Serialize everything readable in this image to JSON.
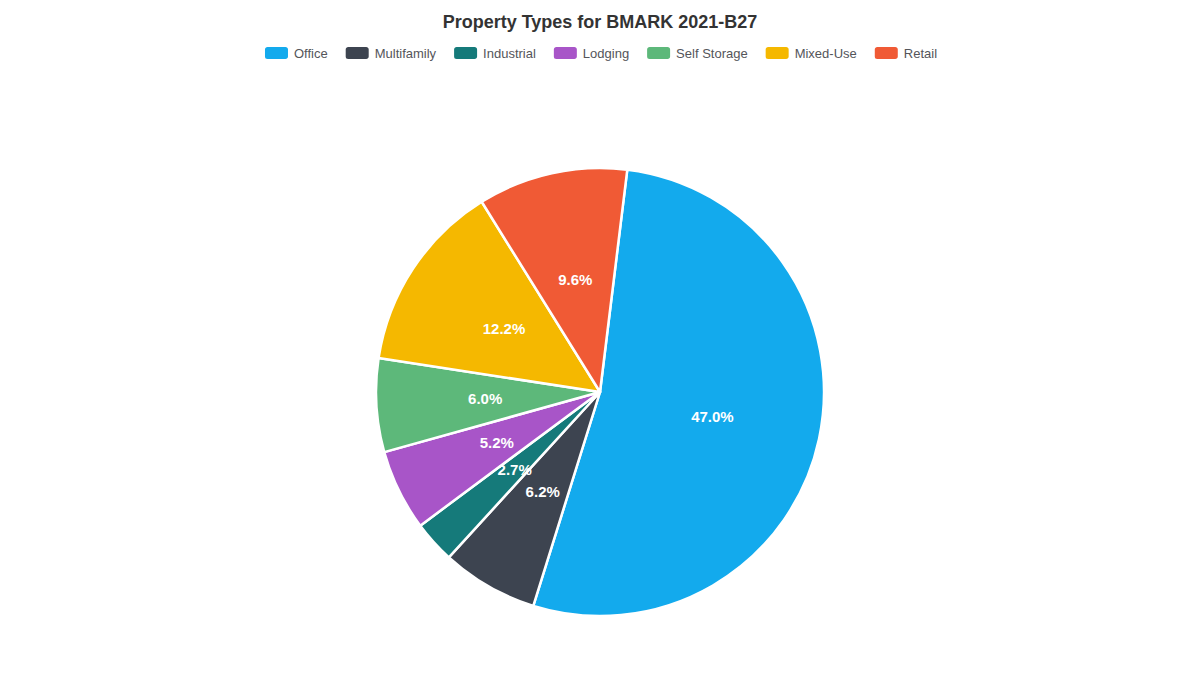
{
  "chart_data": {
    "type": "pie",
    "title": "Property Types for BMARK 2021-B27",
    "categories": [
      "Office",
      "Multifamily",
      "Industrial",
      "Lodging",
      "Self Storage",
      "Mixed-Use",
      "Retail"
    ],
    "values": [
      47.0,
      6.2,
      2.7,
      5.2,
      6.0,
      12.2,
      9.6
    ],
    "value_labels": [
      "47.0%",
      "6.2%",
      "2.7%",
      "5.2%",
      "6.0%",
      "12.2%",
      "9.6%"
    ],
    "colors": [
      "#13aaed",
      "#3d4450",
      "#157a7a",
      "#a855c8",
      "#5db87a",
      "#f5b800",
      "#f05a35"
    ],
    "data_labels": true,
    "legend": "top"
  }
}
